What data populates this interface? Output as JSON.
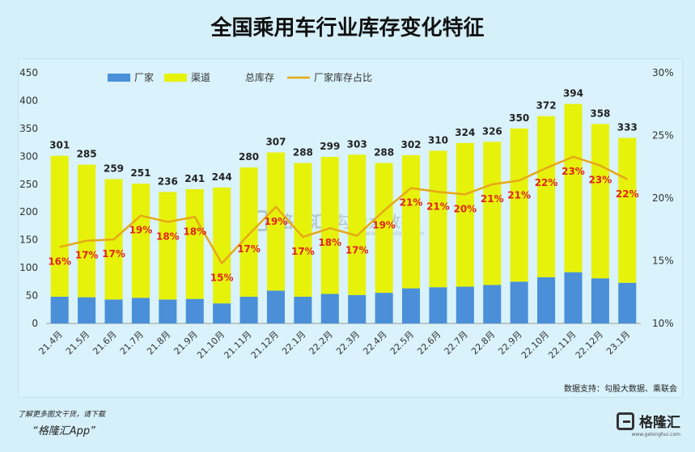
{
  "title": "全国乘用车行业库存变化特征",
  "source": "数据支持：勾股大数据、乘联会",
  "footer": {
    "note": "了解更多图文干货，请下载",
    "app": "“格隆汇App”"
  },
  "brand": {
    "name": "格隆汇",
    "url": "www.gelonghui.com"
  },
  "watermark": {
    "left": "格隆汇",
    "right": "勾股大数据",
    "url": "www.gogudata.com"
  },
  "colors": {
    "factory": "#4a8fd8",
    "channel": "#e6f20a",
    "line": "#e6a817",
    "ratio_text": "#e0231c"
  },
  "chart_data": {
    "type": "bar",
    "stacked": true,
    "categories": [
      "21.4月",
      "21.5月",
      "21.6月",
      "21.7月",
      "21.8月",
      "21.9月",
      "21.10月",
      "21.11月",
      "21.12月",
      "22.1月",
      "22.2月",
      "22.3月",
      "22.4月",
      "22.5月",
      "22.6月",
      "22.7月",
      "22.8月",
      "22.9月",
      "22.10月",
      "22.11月",
      "22.12月",
      "23.1月"
    ],
    "series": [
      {
        "name": "厂家",
        "type": "bar",
        "values": [
          48,
          47,
          43,
          46,
          43,
          44,
          36,
          48,
          59,
          48,
          53,
          51,
          55,
          63,
          65,
          66,
          69,
          75,
          83,
          92,
          81,
          73
        ]
      },
      {
        "name": "渠道",
        "type": "bar",
        "values": [
          253,
          238,
          216,
          205,
          193,
          197,
          208,
          232,
          248,
          240,
          246,
          252,
          233,
          239,
          245,
          258,
          257,
          275,
          289,
          302,
          277,
          260
        ]
      },
      {
        "name": "总库存",
        "type": "label",
        "values": [
          301,
          285,
          259,
          251,
          236,
          241,
          244,
          280,
          307,
          288,
          299,
          303,
          288,
          302,
          310,
          324,
          326,
          350,
          372,
          394,
          358,
          333
        ]
      },
      {
        "name": "厂家库存占比",
        "type": "line",
        "axis": "right",
        "values": [
          16.1,
          16.6,
          16.7,
          18.6,
          18.1,
          18.5,
          14.8,
          17.1,
          19.3,
          16.9,
          17.6,
          17.0,
          19.0,
          20.8,
          20.5,
          20.3,
          21.1,
          21.4,
          22.4,
          23.3,
          22.6,
          21.5
        ],
        "labels": [
          "16%",
          "17%",
          "17%",
          "19%",
          "18%",
          "18%",
          "15%",
          "17%",
          "19%",
          "17%",
          "18%",
          "17%",
          "19%",
          "21%",
          "21%",
          "20%",
          "21%",
          "21%",
          "22%",
          "23%",
          "23%",
          "22%"
        ]
      }
    ],
    "left_axis": {
      "min": 0,
      "max": 450,
      "step": 50,
      "ticks": [
        "0",
        "50",
        "100",
        "150",
        "200",
        "250",
        "300",
        "350",
        "400",
        "450"
      ]
    },
    "right_axis": {
      "min": 10,
      "max": 30,
      "step": 5,
      "ticks": [
        "10%",
        "15%",
        "20%",
        "25%",
        "30%"
      ]
    },
    "legend": [
      "厂家",
      "渠道",
      "总库存",
      "厂家库存占比"
    ],
    "legend_position": "top-left",
    "grid": false
  }
}
